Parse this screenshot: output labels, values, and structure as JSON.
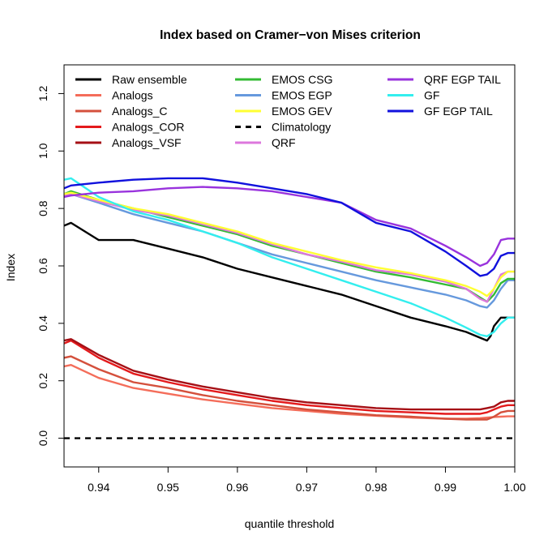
{
  "chart_data": {
    "type": "line",
    "title": "Index based on Cramer−von Mises criterion",
    "xlabel": "quantile threshold",
    "ylabel": "Index",
    "xlim": [
      0.935,
      1.0
    ],
    "ylim": [
      -0.1,
      1.3
    ],
    "x_ticks": [
      "0.94",
      "0.95",
      "0.96",
      "0.97",
      "0.98",
      "0.99",
      "1.00"
    ],
    "y_ticks": [
      "0.0",
      "0.2",
      "0.4",
      "0.6",
      "0.8",
      "1.0",
      "1.2"
    ],
    "x_tick_values": [
      0.94,
      0.95,
      0.96,
      0.97,
      0.98,
      0.99,
      1.0
    ],
    "y_tick_values": [
      0.0,
      0.2,
      0.4,
      0.6,
      0.8,
      1.0,
      1.2
    ],
    "grid": false,
    "legend_placement": "top",
    "series": [
      {
        "name": "Raw ensemble",
        "color": "#000000",
        "dash": "solid",
        "x": [
          0.935,
          0.936,
          0.94,
          0.945,
          0.95,
          0.955,
          0.96,
          0.965,
          0.97,
          0.975,
          0.98,
          0.985,
          0.99,
          0.993,
          0.995,
          0.996,
          0.9965,
          0.997,
          0.998,
          0.999,
          1.0
        ],
        "y": [
          0.74,
          0.75,
          0.69,
          0.69,
          0.66,
          0.63,
          0.59,
          0.56,
          0.53,
          0.5,
          0.46,
          0.42,
          0.39,
          0.37,
          0.35,
          0.34,
          0.355,
          0.39,
          0.42,
          0.42,
          0.42
        ]
      },
      {
        "name": "Analogs",
        "color": "#f46d5a",
        "dash": "solid",
        "x": [
          0.935,
          0.936,
          0.94,
          0.945,
          0.95,
          0.955,
          0.96,
          0.965,
          0.97,
          0.975,
          0.98,
          0.985,
          0.99,
          0.993,
          0.995,
          0.996,
          0.997,
          0.998,
          0.999,
          1.0
        ],
        "y": [
          0.25,
          0.255,
          0.21,
          0.175,
          0.155,
          0.135,
          0.12,
          0.105,
          0.095,
          0.085,
          0.078,
          0.072,
          0.068,
          0.068,
          0.07,
          0.072,
          0.074,
          0.075,
          0.076,
          0.076
        ]
      },
      {
        "name": "Analogs_C",
        "color": "#d4503c",
        "dash": "solid",
        "x": [
          0.935,
          0.936,
          0.94,
          0.945,
          0.95,
          0.955,
          0.96,
          0.965,
          0.97,
          0.975,
          0.98,
          0.985,
          0.99,
          0.993,
          0.995,
          0.996,
          0.997,
          0.998,
          0.999,
          1.0
        ],
        "y": [
          0.28,
          0.285,
          0.24,
          0.195,
          0.175,
          0.15,
          0.13,
          0.115,
          0.1,
          0.09,
          0.08,
          0.075,
          0.068,
          0.065,
          0.065,
          0.065,
          0.075,
          0.09,
          0.095,
          0.095
        ]
      },
      {
        "name": "Analogs_COR",
        "color": "#e41a1c",
        "dash": "solid",
        "x": [
          0.935,
          0.936,
          0.94,
          0.945,
          0.95,
          0.955,
          0.96,
          0.965,
          0.97,
          0.975,
          0.98,
          0.985,
          0.99,
          0.993,
          0.995,
          0.996,
          0.997,
          0.998,
          0.999,
          1.0
        ],
        "y": [
          0.33,
          0.34,
          0.28,
          0.225,
          0.195,
          0.17,
          0.15,
          0.13,
          0.115,
          0.105,
          0.095,
          0.09,
          0.085,
          0.085,
          0.085,
          0.09,
          0.1,
          0.11,
          0.115,
          0.115
        ]
      },
      {
        "name": "Analogs_VSF",
        "color": "#a50f15",
        "dash": "solid",
        "x": [
          0.935,
          0.936,
          0.94,
          0.945,
          0.95,
          0.955,
          0.96,
          0.965,
          0.97,
          0.975,
          0.98,
          0.985,
          0.99,
          0.993,
          0.995,
          0.996,
          0.997,
          0.998,
          0.999,
          1.0
        ],
        "y": [
          0.34,
          0.345,
          0.29,
          0.235,
          0.205,
          0.18,
          0.16,
          0.14,
          0.125,
          0.115,
          0.105,
          0.1,
          0.1,
          0.1,
          0.1,
          0.105,
          0.11,
          0.125,
          0.13,
          0.13
        ]
      },
      {
        "name": "EMOS CSG",
        "color": "#33bb33",
        "dash": "solid",
        "x": [
          0.935,
          0.936,
          0.94,
          0.945,
          0.95,
          0.955,
          0.96,
          0.965,
          0.97,
          0.975,
          0.98,
          0.985,
          0.99,
          0.993,
          0.995,
          0.996,
          0.997,
          0.998,
          0.999,
          1.0
        ],
        "y": [
          0.85,
          0.86,
          0.83,
          0.8,
          0.77,
          0.74,
          0.71,
          0.67,
          0.64,
          0.61,
          0.58,
          0.56,
          0.535,
          0.52,
          0.49,
          0.475,
          0.5,
          0.54,
          0.555,
          0.555
        ]
      },
      {
        "name": "EMOS EGP",
        "color": "#6699dd",
        "dash": "solid",
        "x": [
          0.935,
          0.936,
          0.94,
          0.945,
          0.95,
          0.955,
          0.96,
          0.965,
          0.97,
          0.975,
          0.98,
          0.985,
          0.99,
          0.993,
          0.995,
          0.996,
          0.997,
          0.998,
          0.999,
          1.0
        ],
        "y": [
          0.84,
          0.85,
          0.82,
          0.78,
          0.75,
          0.72,
          0.68,
          0.64,
          0.61,
          0.58,
          0.55,
          0.525,
          0.5,
          0.48,
          0.46,
          0.455,
          0.48,
          0.52,
          0.55,
          0.55
        ]
      },
      {
        "name": "EMOS GEV",
        "color": "#ffff33",
        "dash": "solid",
        "x": [
          0.935,
          0.936,
          0.94,
          0.945,
          0.95,
          0.955,
          0.96,
          0.965,
          0.97,
          0.975,
          0.98,
          0.985,
          0.99,
          0.993,
          0.995,
          0.996,
          0.997,
          0.998,
          0.999,
          1.0
        ],
        "y": [
          0.85,
          0.855,
          0.83,
          0.8,
          0.78,
          0.75,
          0.72,
          0.68,
          0.65,
          0.62,
          0.595,
          0.575,
          0.55,
          0.53,
          0.51,
          0.495,
          0.52,
          0.56,
          0.58,
          0.58
        ]
      },
      {
        "name": "Climatology",
        "color": "#000000",
        "dash": "dashed",
        "x": [
          0.935,
          1.0
        ],
        "y": [
          0.0,
          0.0
        ]
      },
      {
        "name": "QRF",
        "color": "#dd77dd",
        "dash": "solid",
        "x": [
          0.935,
          0.936,
          0.94,
          0.945,
          0.95,
          0.955,
          0.96,
          0.965,
          0.97,
          0.975,
          0.98,
          0.985,
          0.99,
          0.993,
          0.995,
          0.996,
          0.997,
          0.998,
          0.999,
          1.0
        ],
        "y": [
          0.845,
          0.85,
          0.825,
          0.795,
          0.775,
          0.745,
          0.715,
          0.675,
          0.64,
          0.615,
          0.585,
          0.57,
          0.545,
          0.52,
          0.485,
          0.475,
          0.52,
          0.57,
          0.58,
          0.58
        ]
      },
      {
        "name": "QRF EGP TAIL",
        "color": "#9933dd",
        "dash": "solid",
        "x": [
          0.935,
          0.936,
          0.94,
          0.945,
          0.95,
          0.955,
          0.96,
          0.965,
          0.97,
          0.975,
          0.98,
          0.985,
          0.99,
          0.993,
          0.995,
          0.996,
          0.997,
          0.998,
          0.999,
          1.0
        ],
        "y": [
          0.84,
          0.845,
          0.855,
          0.86,
          0.87,
          0.875,
          0.87,
          0.86,
          0.84,
          0.82,
          0.76,
          0.73,
          0.67,
          0.63,
          0.6,
          0.61,
          0.64,
          0.69,
          0.695,
          0.695
        ]
      },
      {
        "name": "GF",
        "color": "#33eeee",
        "dash": "solid",
        "x": [
          0.935,
          0.936,
          0.94,
          0.945,
          0.95,
          0.955,
          0.96,
          0.965,
          0.97,
          0.975,
          0.98,
          0.985,
          0.99,
          0.993,
          0.995,
          0.996,
          0.997,
          0.998,
          0.999,
          1.0
        ],
        "y": [
          0.9,
          0.905,
          0.84,
          0.79,
          0.76,
          0.72,
          0.68,
          0.63,
          0.59,
          0.55,
          0.51,
          0.47,
          0.42,
          0.385,
          0.36,
          0.355,
          0.37,
          0.4,
          0.42,
          0.42
        ]
      },
      {
        "name": "GF EGP TAIL",
        "color": "#1111dd",
        "dash": "solid",
        "x": [
          0.935,
          0.936,
          0.94,
          0.945,
          0.95,
          0.955,
          0.96,
          0.965,
          0.97,
          0.975,
          0.98,
          0.985,
          0.99,
          0.993,
          0.995,
          0.996,
          0.997,
          0.998,
          0.999,
          1.0
        ],
        "y": [
          0.87,
          0.88,
          0.89,
          0.9,
          0.905,
          0.905,
          0.89,
          0.87,
          0.85,
          0.82,
          0.75,
          0.72,
          0.65,
          0.6,
          0.565,
          0.57,
          0.59,
          0.635,
          0.645,
          0.645
        ]
      }
    ]
  }
}
